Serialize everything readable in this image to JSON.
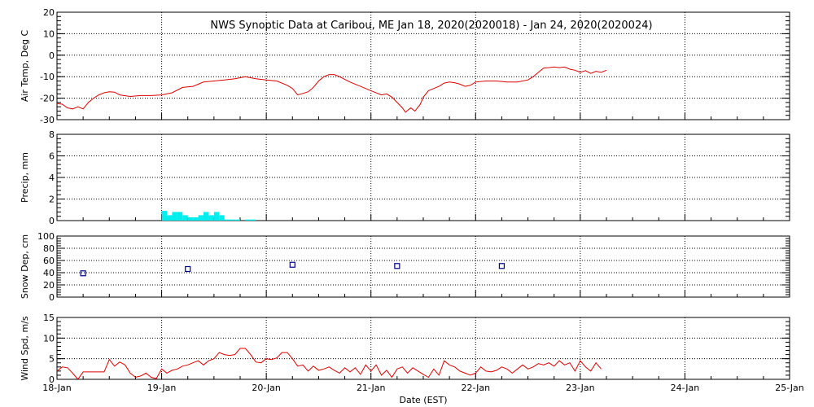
{
  "chart_data": {
    "type": "line",
    "title": "NWS Synoptic Data at Caribou, ME   Jan 18, 2020(2020018) - Jan 24, 2020(2020024)",
    "xlabel": "Date (EST)",
    "x_tick_labels": [
      "18-Jan",
      "19-Jan",
      "20-Jan",
      "21-Jan",
      "22-Jan",
      "23-Jan",
      "24-Jan",
      "25-Jan"
    ],
    "x_unit": "days since 18-Jan 00:00",
    "xlim": [
      0,
      7
    ],
    "colors": {
      "temp": "#dd0000",
      "precip": "#00eeee",
      "snow": "#00008b",
      "wind": "#dd0000",
      "grid": "#000000"
    },
    "panels": [
      {
        "id": "temp",
        "type": "line",
        "ylabel": "Air Temp, Deg C",
        "ylim": [
          -30,
          20
        ],
        "yticks": [
          -30,
          -20,
          -10,
          0,
          10,
          20
        ],
        "points": [
          [
            0.0,
            -22.5
          ],
          [
            0.05,
            -22.8
          ],
          [
            0.1,
            -24.5
          ],
          [
            0.15,
            -25.0
          ],
          [
            0.2,
            -24.0
          ],
          [
            0.25,
            -25.0
          ],
          [
            0.3,
            -22.0
          ],
          [
            0.35,
            -20.0
          ],
          [
            0.4,
            -18.5
          ],
          [
            0.45,
            -17.5
          ],
          [
            0.5,
            -17.0
          ],
          [
            0.55,
            -17.2
          ],
          [
            0.6,
            -18.5
          ],
          [
            0.7,
            -19.2
          ],
          [
            0.8,
            -18.8
          ],
          [
            0.9,
            -18.8
          ],
          [
            1.0,
            -18.5
          ],
          [
            1.1,
            -17.5
          ],
          [
            1.2,
            -15.0
          ],
          [
            1.3,
            -14.5
          ],
          [
            1.4,
            -12.5
          ],
          [
            1.5,
            -12.0
          ],
          [
            1.6,
            -11.5
          ],
          [
            1.7,
            -11.0
          ],
          [
            1.75,
            -10.5
          ],
          [
            1.8,
            -10.0
          ],
          [
            1.85,
            -10.5
          ],
          [
            1.9,
            -11.0
          ],
          [
            2.0,
            -11.5
          ],
          [
            2.1,
            -12.0
          ],
          [
            2.2,
            -14.0
          ],
          [
            2.25,
            -15.5
          ],
          [
            2.3,
            -18.5
          ],
          [
            2.35,
            -17.8
          ],
          [
            2.4,
            -17.0
          ],
          [
            2.45,
            -15.0
          ],
          [
            2.5,
            -12.0
          ],
          [
            2.55,
            -10.0
          ],
          [
            2.6,
            -9.0
          ],
          [
            2.65,
            -9.0
          ],
          [
            2.7,
            -10.0
          ],
          [
            2.8,
            -12.5
          ],
          [
            2.9,
            -14.5
          ],
          [
            3.0,
            -16.5
          ],
          [
            3.1,
            -18.5
          ],
          [
            3.15,
            -18.0
          ],
          [
            3.2,
            -19.5
          ],
          [
            3.25,
            -22.0
          ],
          [
            3.3,
            -24.5
          ],
          [
            3.33,
            -26.5
          ],
          [
            3.38,
            -24.5
          ],
          [
            3.42,
            -26.0
          ],
          [
            3.47,
            -23.0
          ],
          [
            3.5,
            -19.5
          ],
          [
            3.55,
            -16.5
          ],
          [
            3.6,
            -15.5
          ],
          [
            3.65,
            -14.5
          ],
          [
            3.7,
            -13.0
          ],
          [
            3.75,
            -12.5
          ],
          [
            3.8,
            -12.8
          ],
          [
            3.85,
            -13.5
          ],
          [
            3.9,
            -14.5
          ],
          [
            3.95,
            -14.0
          ],
          [
            4.0,
            -12.5
          ],
          [
            4.1,
            -12.0
          ],
          [
            4.2,
            -12.0
          ],
          [
            4.3,
            -12.5
          ],
          [
            4.4,
            -12.5
          ],
          [
            4.5,
            -11.5
          ],
          [
            4.55,
            -10.0
          ],
          [
            4.6,
            -8.0
          ],
          [
            4.65,
            -6.0
          ],
          [
            4.7,
            -5.8
          ],
          [
            4.75,
            -5.5
          ],
          [
            4.8,
            -5.8
          ],
          [
            4.85,
            -5.5
          ],
          [
            4.9,
            -6.5
          ],
          [
            4.95,
            -7.0
          ],
          [
            5.0,
            -8.0
          ],
          [
            5.05,
            -7.2
          ],
          [
            5.1,
            -8.5
          ],
          [
            5.15,
            -7.5
          ],
          [
            5.2,
            -8.0
          ],
          [
            5.25,
            -7.0
          ]
        ]
      },
      {
        "id": "precip",
        "type": "bar",
        "ylabel": "Precip, mm",
        "ylim": [
          0,
          8
        ],
        "yticks": [
          0,
          2,
          4,
          6,
          8
        ],
        "bar_width_days": 0.05,
        "bars": [
          [
            1.0,
            0.9
          ],
          [
            1.05,
            0.5
          ],
          [
            1.1,
            0.8
          ],
          [
            1.15,
            0.8
          ],
          [
            1.2,
            0.5
          ],
          [
            1.25,
            0.3
          ],
          [
            1.3,
            0.3
          ],
          [
            1.35,
            0.5
          ],
          [
            1.4,
            0.8
          ],
          [
            1.45,
            0.5
          ],
          [
            1.5,
            0.8
          ],
          [
            1.55,
            0.5
          ],
          [
            1.6,
            0.1
          ],
          [
            1.65,
            0.1
          ],
          [
            1.7,
            0.1
          ],
          [
            1.8,
            0.1
          ],
          [
            1.85,
            0.1
          ]
        ]
      },
      {
        "id": "snow",
        "type": "scatter",
        "ylabel": "Snow Dep, cm",
        "ylim": [
          0,
          100
        ],
        "yticks": [
          0,
          20,
          40,
          60,
          80,
          100
        ],
        "points": [
          [
            0.25,
            39
          ],
          [
            1.25,
            46
          ],
          [
            2.25,
            53
          ],
          [
            3.25,
            51
          ],
          [
            4.25,
            51
          ]
        ]
      },
      {
        "id": "wind",
        "type": "line",
        "ylabel": "Wind Spd, m/s",
        "ylim": [
          0,
          15
        ],
        "yticks": [
          0,
          5,
          10,
          15
        ],
        "points": [
          [
            0.0,
            2.0
          ],
          [
            0.05,
            3.0
          ],
          [
            0.1,
            2.8
          ],
          [
            0.15,
            1.5
          ],
          [
            0.2,
            0.0
          ],
          [
            0.25,
            1.8
          ],
          [
            0.3,
            1.8
          ],
          [
            0.35,
            1.8
          ],
          [
            0.4,
            1.8
          ],
          [
            0.45,
            1.8
          ],
          [
            0.5,
            4.8
          ],
          [
            0.55,
            3.2
          ],
          [
            0.6,
            4.2
          ],
          [
            0.65,
            3.5
          ],
          [
            0.7,
            1.5
          ],
          [
            0.75,
            0.5
          ],
          [
            0.8,
            0.8
          ],
          [
            0.85,
            1.5
          ],
          [
            0.9,
            0.5
          ],
          [
            0.95,
            0.2
          ],
          [
            1.0,
            2.5
          ],
          [
            1.05,
            1.5
          ],
          [
            1.1,
            2.2
          ],
          [
            1.15,
            2.5
          ],
          [
            1.2,
            3.2
          ],
          [
            1.25,
            3.5
          ],
          [
            1.3,
            4.0
          ],
          [
            1.35,
            4.5
          ],
          [
            1.4,
            3.5
          ],
          [
            1.45,
            4.5
          ],
          [
            1.5,
            5.0
          ],
          [
            1.55,
            6.5
          ],
          [
            1.6,
            6.0
          ],
          [
            1.65,
            5.8
          ],
          [
            1.7,
            6.0
          ],
          [
            1.75,
            7.5
          ],
          [
            1.8,
            7.5
          ],
          [
            1.85,
            6.0
          ],
          [
            1.9,
            4.2
          ],
          [
            1.95,
            4.0
          ],
          [
            2.0,
            5.0
          ],
          [
            2.05,
            4.8
          ],
          [
            2.1,
            5.2
          ],
          [
            2.15,
            6.5
          ],
          [
            2.2,
            6.5
          ],
          [
            2.25,
            5.0
          ],
          [
            2.3,
            3.2
          ],
          [
            2.35,
            3.5
          ],
          [
            2.4,
            2.0
          ],
          [
            2.45,
            3.2
          ],
          [
            2.5,
            2.2
          ],
          [
            2.55,
            2.5
          ],
          [
            2.6,
            3.0
          ],
          [
            2.65,
            2.2
          ],
          [
            2.7,
            1.5
          ],
          [
            2.75,
            2.8
          ],
          [
            2.8,
            1.8
          ],
          [
            2.85,
            2.8
          ],
          [
            2.9,
            1.2
          ],
          [
            2.95,
            3.5
          ],
          [
            3.0,
            2.0
          ],
          [
            3.05,
            3.5
          ],
          [
            3.1,
            1.0
          ],
          [
            3.15,
            2.2
          ],
          [
            3.2,
            0.5
          ],
          [
            3.25,
            2.5
          ],
          [
            3.3,
            3.0
          ],
          [
            3.35,
            1.5
          ],
          [
            3.4,
            2.8
          ],
          [
            3.45,
            2.0
          ],
          [
            3.5,
            1.2
          ],
          [
            3.55,
            0.5
          ],
          [
            3.6,
            2.5
          ],
          [
            3.65,
            1.0
          ],
          [
            3.7,
            4.5
          ],
          [
            3.75,
            3.5
          ],
          [
            3.8,
            3.0
          ],
          [
            3.85,
            2.0
          ],
          [
            3.9,
            1.5
          ],
          [
            3.95,
            1.0
          ],
          [
            4.0,
            1.5
          ],
          [
            4.05,
            3.0
          ],
          [
            4.1,
            2.0
          ],
          [
            4.15,
            1.8
          ],
          [
            4.2,
            2.2
          ],
          [
            4.25,
            3.0
          ],
          [
            4.3,
            2.5
          ],
          [
            4.35,
            1.5
          ],
          [
            4.4,
            2.5
          ],
          [
            4.45,
            3.5
          ],
          [
            4.5,
            2.5
          ],
          [
            4.55,
            3.0
          ],
          [
            4.6,
            3.8
          ],
          [
            4.65,
            3.5
          ],
          [
            4.7,
            4.0
          ],
          [
            4.75,
            3.2
          ],
          [
            4.8,
            4.5
          ],
          [
            4.85,
            3.5
          ],
          [
            4.9,
            4.0
          ],
          [
            4.95,
            2.0
          ],
          [
            5.0,
            4.5
          ],
          [
            5.05,
            3.0
          ],
          [
            5.1,
            2.0
          ],
          [
            5.15,
            4.0
          ],
          [
            5.2,
            2.5
          ]
        ]
      }
    ]
  }
}
